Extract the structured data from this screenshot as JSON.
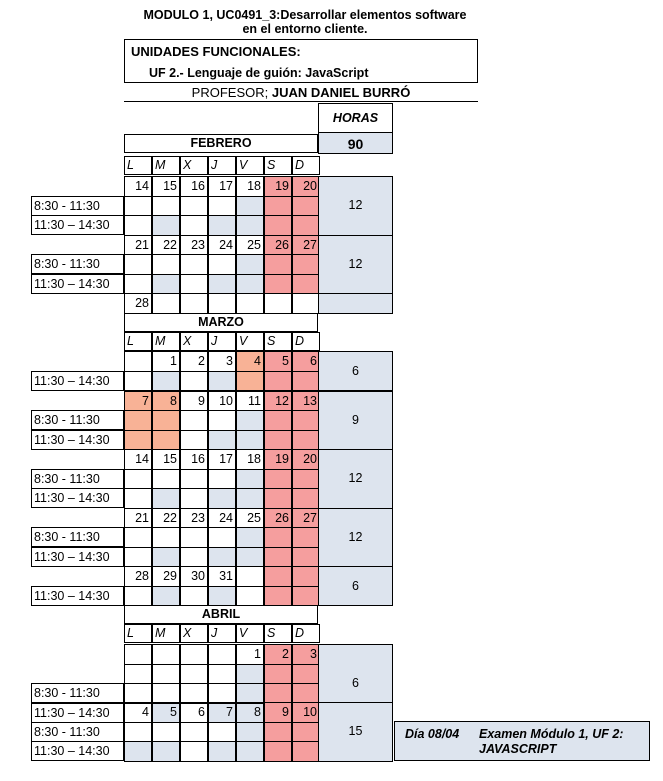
{
  "title_line1": "MODULO 1, UC0491_3:Desarrollar elementos software",
  "title_line2": "en el entorno cliente.",
  "uf_heading": "UNIDADES FUNCIONALES:",
  "uf_item": "UF 2.- Lenguaje de guión: JavaScript",
  "profesor_label": "PROFESOR;",
  "profesor_name": "JUAN DANIEL BURRÓ",
  "horas_label": "HORAS",
  "horas_total": "90",
  "day_headers": [
    "L",
    "M",
    "X",
    "J",
    "V",
    "S",
    "D"
  ],
  "months": {
    "feb": "FEBRERO",
    "mar": "MARZO",
    "abr": "ABRIL"
  },
  "time_slots": {
    "a": "8:30  -  11:30",
    "b": "11:30 – 14:30"
  },
  "week_hours": {
    "feb1": "12",
    "feb2": "12",
    "mar1": "6",
    "mar2": "9",
    "mar3": "12",
    "mar4": "12",
    "mar5": "6",
    "abr1": "6",
    "abr2": "15"
  },
  "exam": {
    "date": "Día 08/04",
    "text_line1": "Examen Módulo 1,  UF 2:",
    "text_line2": "JAVASCRIPT"
  },
  "dates": {
    "feb1": [
      "14",
      "15",
      "16",
      "17",
      "18",
      "19",
      "20"
    ],
    "feb2": [
      "21",
      "22",
      "23",
      "24",
      "25",
      "26",
      "27"
    ],
    "feb3": [
      "28",
      "",
      "",
      "",
      "",
      "",
      ""
    ],
    "mar1": [
      "",
      "1",
      "2",
      "3",
      "4",
      "5",
      "6"
    ],
    "mar2": [
      "7",
      "8",
      "9",
      "10",
      "11",
      "12",
      "13"
    ],
    "mar3": [
      "14",
      "15",
      "16",
      "17",
      "18",
      "19",
      "20"
    ],
    "mar4": [
      "21",
      "22",
      "23",
      "24",
      "25",
      "26",
      "27"
    ],
    "mar5": [
      "28",
      "29",
      "30",
      "31",
      "",
      "",
      ""
    ],
    "abr1": [
      "",
      "",
      "",
      "",
      "1",
      "2",
      "3"
    ],
    "abr2": [
      "4",
      "5",
      "6",
      "7",
      "8",
      "9",
      "10"
    ]
  }
}
